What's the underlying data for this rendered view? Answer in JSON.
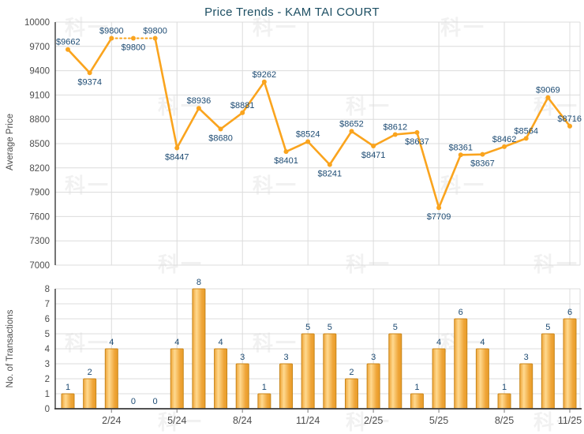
{
  "watermark_text": "科一",
  "chart_data": [
    {
      "type": "line",
      "title": "Price Trends - KAM TAI COURT",
      "ylabel": "Average Price",
      "ylim": [
        7000,
        10000
      ],
      "ytick_step": 300,
      "grid": true,
      "legend": "none",
      "n_points": 24,
      "x_tick_labels": [
        "2/24",
        "5/24",
        "8/24",
        "11/24",
        "2/25",
        "5/25",
        "8/25",
        "11/25"
      ],
      "x_tick_indices": [
        2,
        5,
        8,
        11,
        14,
        17,
        20,
        23
      ],
      "series": [
        {
          "name": "Average Price",
          "values": [
            9662,
            9374,
            9800,
            9800,
            9800,
            8447,
            8936,
            8680,
            8881,
            9262,
            8401,
            8524,
            8241,
            8652,
            8471,
            8612,
            8637,
            7709,
            8361,
            8367,
            8462,
            8564,
            9069,
            8716
          ]
        }
      ],
      "point_label_prefix": "$",
      "point_label_positions": [
        "above",
        "below",
        "above",
        "below",
        "above",
        "below",
        "above",
        "below",
        "above",
        "above",
        "below",
        "above",
        "below",
        "above",
        "below",
        "above",
        "below",
        "below",
        "above",
        "below",
        "above",
        "above",
        "above",
        "above"
      ],
      "dotted_segment": [
        2,
        4
      ],
      "colors": {
        "line": "#FAA41E",
        "point_label": "#1D4B73",
        "axis_text": "#4D4D4D",
        "grid": "#DCDCDC",
        "axis_line": "#3A3A3A",
        "title": "#1D4F63"
      }
    },
    {
      "type": "bar",
      "ylabel": "No. of Transactions",
      "ylim": [
        0,
        8
      ],
      "ytick_step": 1,
      "grid": true,
      "x_tick_labels": [
        "2/24",
        "5/24",
        "8/24",
        "11/24",
        "2/25",
        "5/25",
        "8/25",
        "11/25"
      ],
      "x_tick_indices": [
        2,
        5,
        8,
        11,
        14,
        17,
        20,
        23
      ],
      "values": [
        1,
        2,
        4,
        0,
        0,
        4,
        8,
        4,
        3,
        1,
        3,
        5,
        5,
        2,
        3,
        5,
        1,
        4,
        6,
        4,
        1,
        3,
        5,
        6
      ],
      "colors": {
        "bar_border": "#C8861B",
        "bar_edge": "#EFA538",
        "bar_light": "#FFD98F",
        "bar_dark": "#E89C28",
        "value_label": "#1D4B73",
        "tick_mark": "#999999"
      }
    }
  ]
}
